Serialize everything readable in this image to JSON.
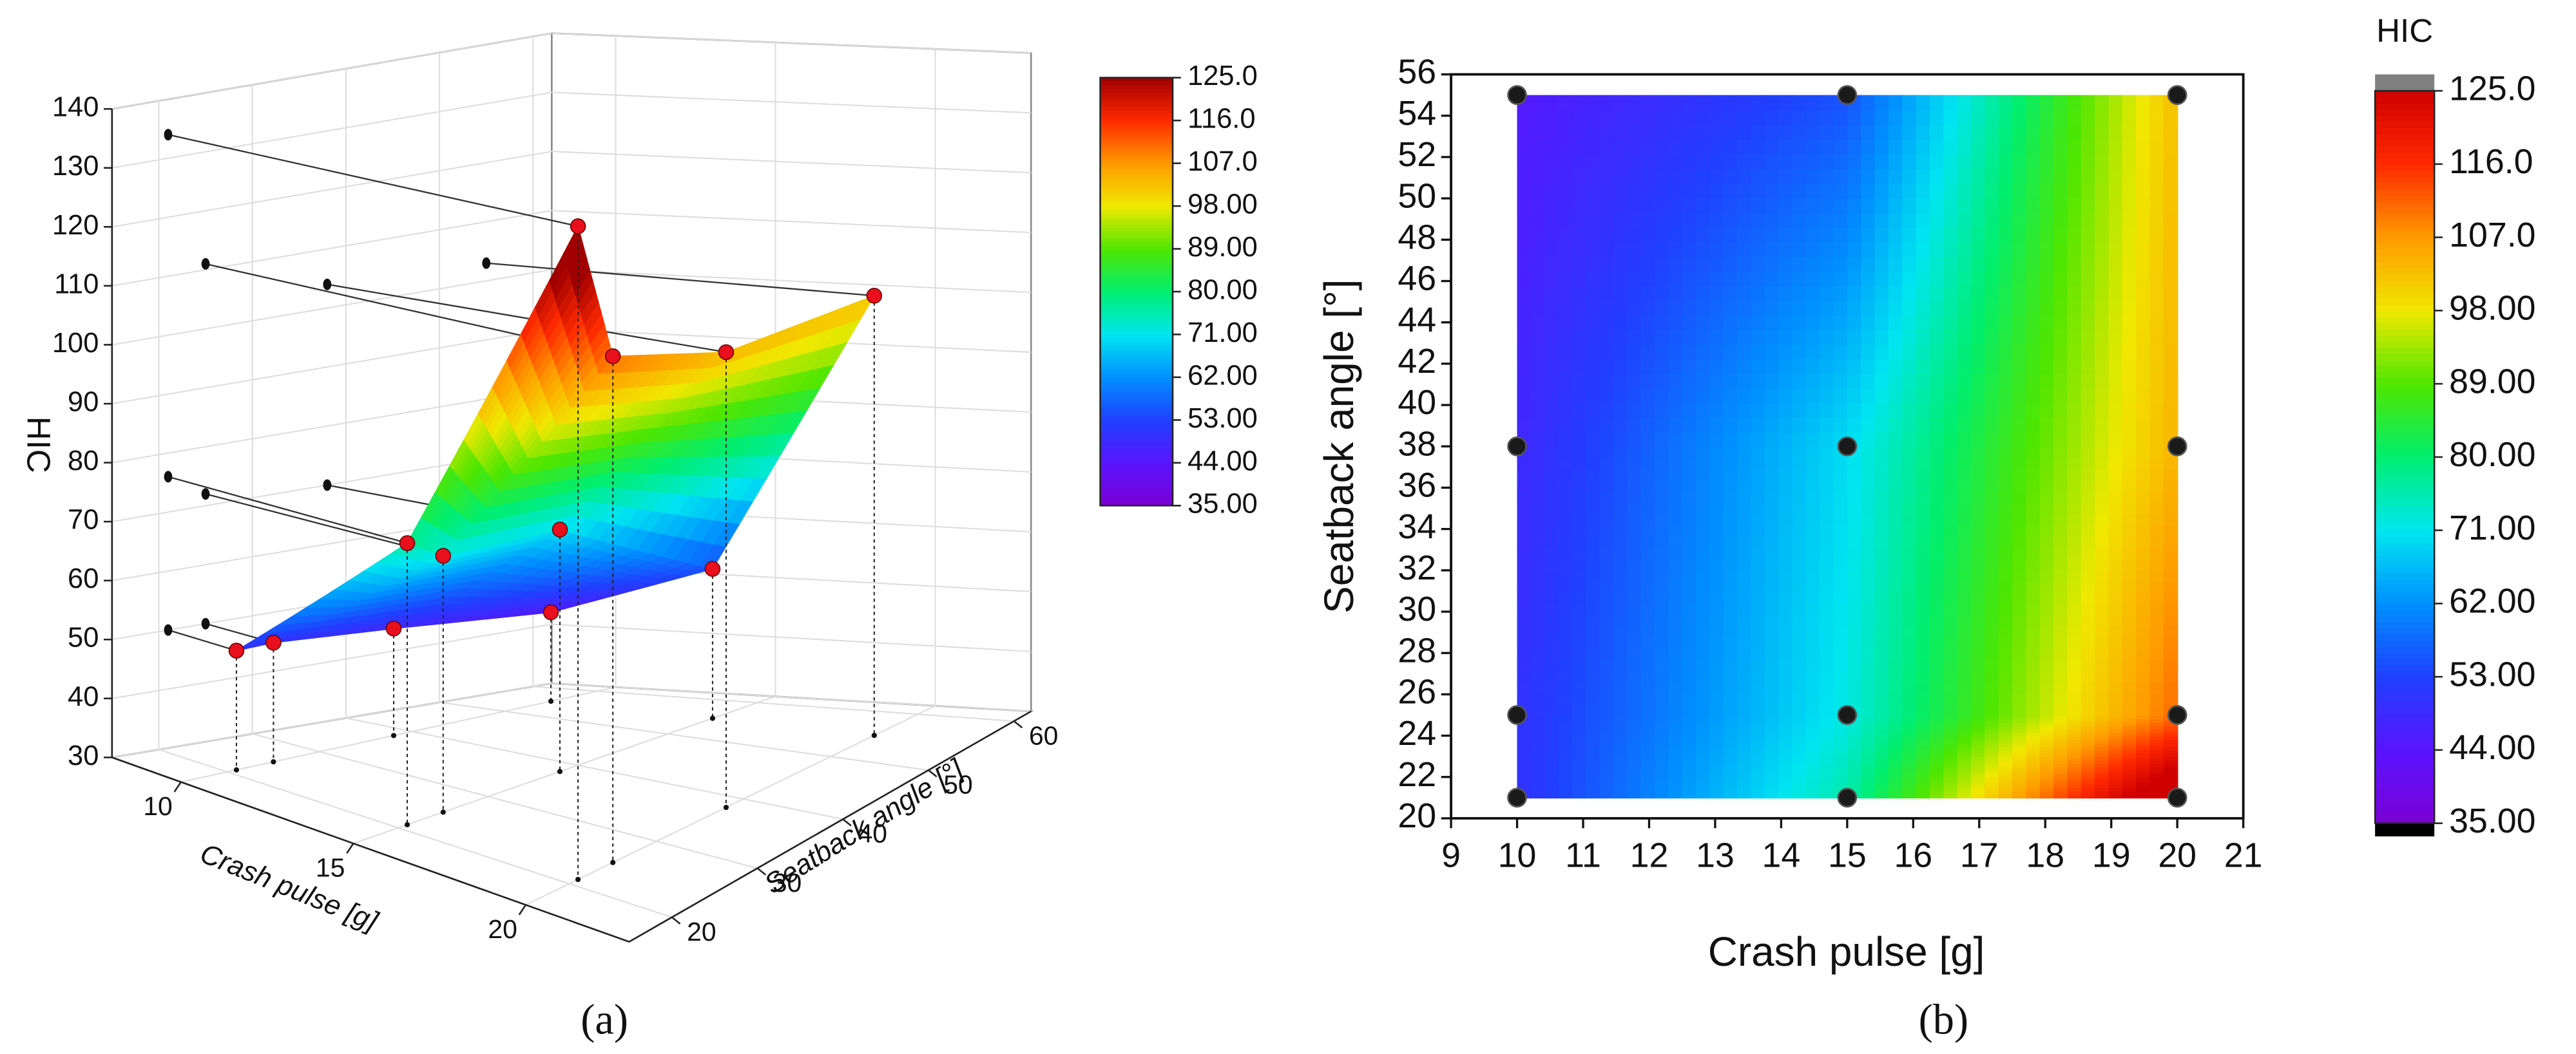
{
  "chart_data": [
    {
      "type": "surface3d",
      "x_label": "Crash pulse [g]",
      "y_label": "Seatback angle [°]",
      "z_label": "HIC",
      "caption": "(a)",
      "x": [
        10,
        10,
        10,
        10,
        15,
        15,
        15,
        15,
        20,
        20,
        20,
        20
      ],
      "y": [
        21,
        25,
        38,
        55,
        21,
        25,
        38,
        55,
        21,
        25,
        38,
        55
      ],
      "z": [
        50,
        50,
        48,
        45,
        76,
        72,
        70,
        55,
        134,
        111,
        104,
        103
      ],
      "xlim": [
        8,
        23
      ],
      "xticks": [
        10,
        15,
        20
      ],
      "ylim": [
        15,
        62
      ],
      "yticks": [
        20,
        30,
        40,
        50,
        60
      ],
      "zlim": [
        30,
        140
      ],
      "zticks": [
        30,
        40,
        50,
        60,
        70,
        80,
        90,
        100,
        110,
        120,
        130,
        140
      ],
      "point_color": "#e8101c",
      "projection_color": "#111111",
      "colormap": [
        "#7b00d4",
        "#5a14ff",
        "#2040ff",
        "#0090ff",
        "#00e6f0",
        "#00ee70",
        "#50e600",
        "#f0e800",
        "#ff9a00",
        "#ff2a00",
        "#a00000"
      ],
      "colorbar": {
        "lim": [
          35,
          125
        ],
        "ticks": [
          {
            "value": 125,
            "label": "125.0"
          },
          {
            "value": 116,
            "label": "116.0"
          },
          {
            "value": 107,
            "label": "107.0"
          },
          {
            "value": 98,
            "label": "98.00"
          },
          {
            "value": 89,
            "label": "89.00"
          },
          {
            "value": 80,
            "label": "80.00"
          },
          {
            "value": 71,
            "label": "71.00"
          },
          {
            "value": 62,
            "label": "62.00"
          },
          {
            "value": 53,
            "label": "53.00"
          },
          {
            "value": 44,
            "label": "44.00"
          },
          {
            "value": 35,
            "label": "35.00"
          }
        ]
      }
    },
    {
      "type": "contour",
      "x_label": "Crash pulse [g]",
      "y_label": "Seatback angle [°]",
      "caption": "(b)",
      "x": [
        10,
        10,
        10,
        10,
        15,
        15,
        15,
        15,
        20,
        20,
        20,
        20
      ],
      "y": [
        21,
        25,
        38,
        55,
        21,
        25,
        38,
        55,
        21,
        25,
        38,
        55
      ],
      "z": [
        50,
        50,
        48,
        45,
        76,
        72,
        70,
        55,
        134,
        111,
        104,
        103
      ],
      "xlim": [
        9,
        21
      ],
      "xticks": [
        9,
        10,
        11,
        12,
        13,
        14,
        15,
        16,
        17,
        18,
        19,
        20,
        21
      ],
      "ylim": [
        20,
        56
      ],
      "yticks": [
        20,
        22,
        24,
        26,
        28,
        30,
        32,
        34,
        36,
        38,
        40,
        42,
        44,
        46,
        48,
        50,
        52,
        54,
        56
      ],
      "point_color": "#1a1a1a",
      "colormap": [
        "#7b00d4",
        "#5a14ff",
        "#2040ff",
        "#0090ff",
        "#00e6f0",
        "#00ee70",
        "#50e600",
        "#f0e800",
        "#ff9a00",
        "#ff2a00",
        "#d00000"
      ],
      "colorbar": {
        "title": "HIC",
        "lim": [
          35,
          125
        ],
        "ticks": [
          {
            "value": 125,
            "label": "125.0"
          },
          {
            "value": 116,
            "label": "116.0"
          },
          {
            "value": 107,
            "label": "107.0"
          },
          {
            "value": 98,
            "label": "98.00"
          },
          {
            "value": 89,
            "label": "89.00"
          },
          {
            "value": 80,
            "label": "80.00"
          },
          {
            "value": 71,
            "label": "71.00"
          },
          {
            "value": 62,
            "label": "62.00"
          },
          {
            "value": 53,
            "label": "53.00"
          },
          {
            "value": 44,
            "label": "44.00"
          },
          {
            "value": 35,
            "label": "35.00"
          }
        ]
      }
    }
  ]
}
